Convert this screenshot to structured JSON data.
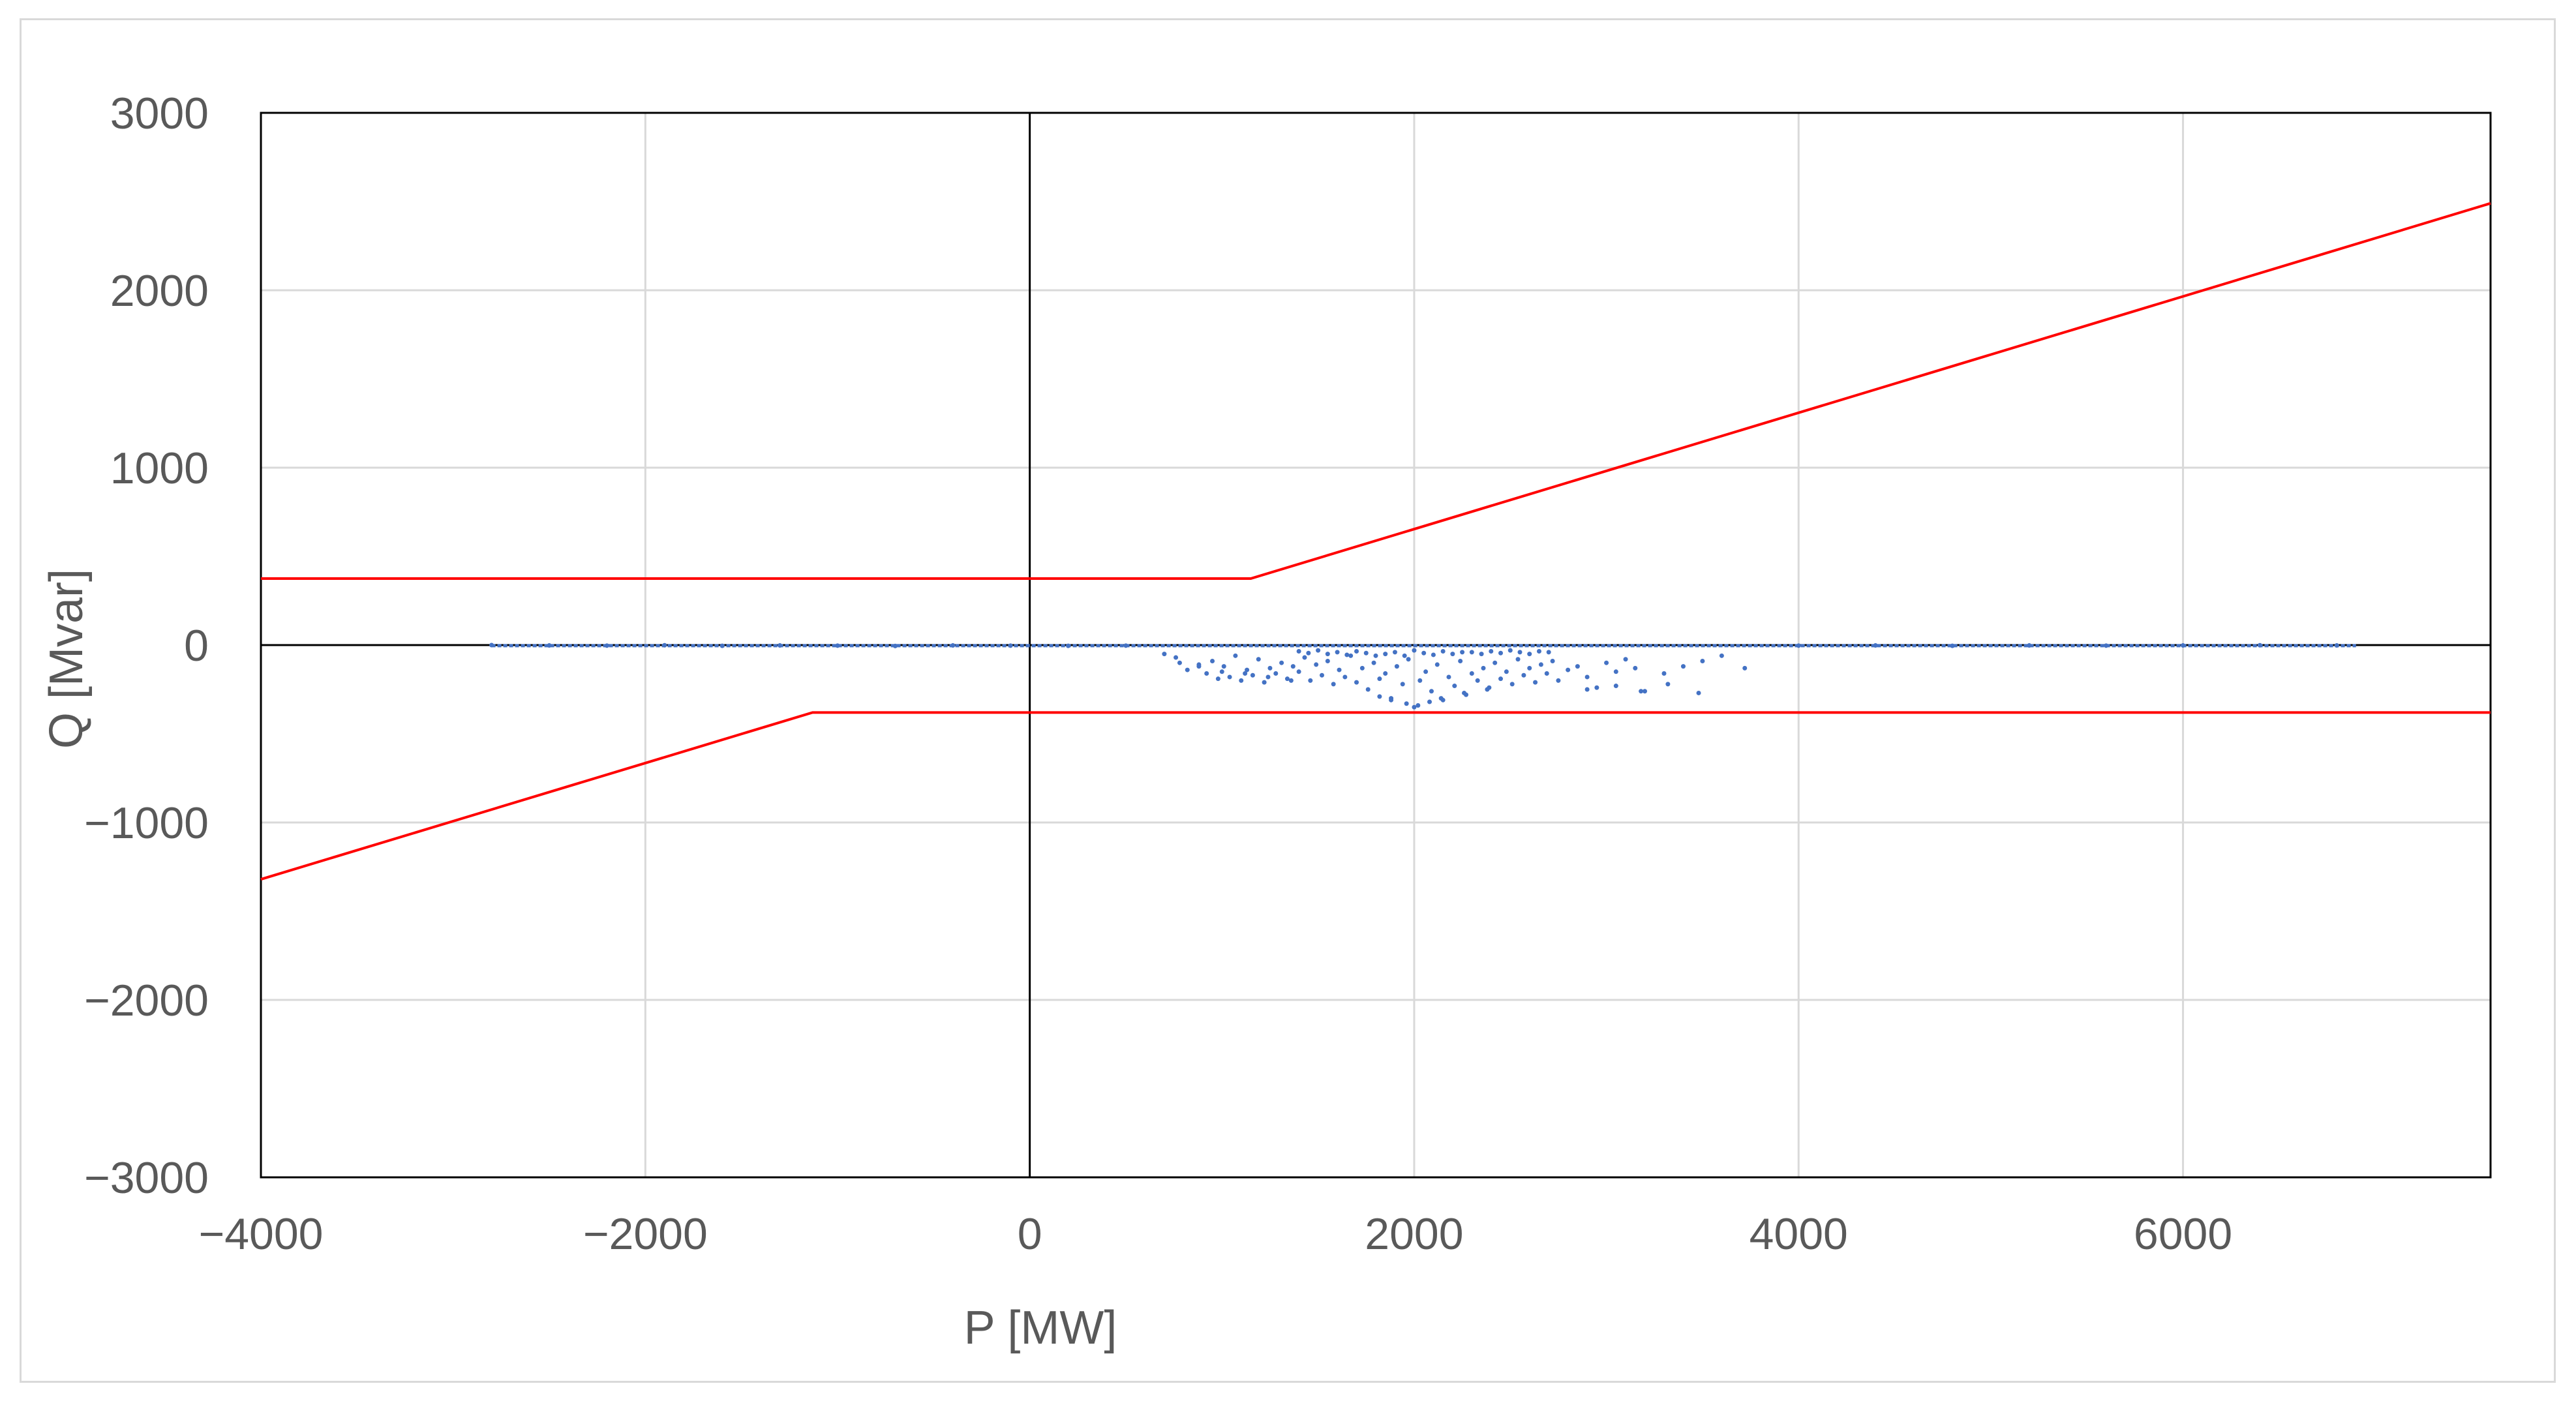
{
  "chart_data": {
    "type": "scatter",
    "title": "",
    "xlabel": "P [MW]",
    "ylabel": "Q [Mvar]",
    "xlim": [
      -4000,
      7600
    ],
    "ylim": [
      -3000,
      3000
    ],
    "x_ticks": [
      -4000,
      -2000,
      0,
      2000,
      4000,
      6000
    ],
    "y_ticks": [
      -3000,
      -2000,
      -1000,
      0,
      1000,
      2000,
      3000
    ],
    "x_tick_labels": [
      "−4000",
      "−2000",
      "0",
      "2000",
      "4000",
      "6000"
    ],
    "y_tick_labels": [
      "−3000",
      "−2000",
      "−1000",
      "0",
      "1000",
      "2000",
      "3000"
    ],
    "grid": true,
    "legend": "none",
    "colors": {
      "limit": "#ff0000",
      "points": "#4472c4",
      "grid": "#d9d9d9",
      "axis": "#000000",
      "text": "#595959"
    },
    "limit_lines": [
      {
        "name": "upper",
        "x": [
          -4000,
          1150,
          7600
        ],
        "y": [
          375,
          375,
          2490
        ]
      },
      {
        "name": "lower",
        "x": [
          -4000,
          -1130,
          7600
        ],
        "y": [
          -1320,
          -380,
          -380
        ]
      }
    ],
    "operating_points": {
      "x": [
        -2800,
        -2500,
        -2200,
        -1900,
        -1600,
        -1300,
        -1000,
        -700,
        -400,
        -100,
        200,
        500,
        700,
        760,
        820,
        880,
        920,
        950,
        980,
        1010,
        1040,
        1070,
        1100,
        1130,
        1160,
        1190,
        1220,
        1250,
        1280,
        1310,
        1340,
        1370,
        1400,
        1430,
        1460,
        1490,
        1520,
        1550,
        1580,
        1610,
        1640,
        1670,
        1700,
        1730,
        1760,
        1790,
        1820,
        1850,
        1880,
        1910,
        1940,
        1970,
        2000,
        2030,
        2060,
        2090,
        2120,
        2150,
        2180,
        2210,
        2240,
        2270,
        2300,
        2330,
        2360,
        2390,
        2420,
        2450,
        2480,
        2510,
        2540,
        2570,
        2600,
        2630,
        2660,
        2690,
        2720,
        2750,
        2800,
        2850,
        2900,
        2950,
        3000,
        3050,
        3100,
        3150,
        3200,
        3300,
        3400,
        3500,
        3600,
        3720,
        4000,
        4400,
        4800,
        5200,
        5600,
        6000,
        6400,
        6800,
        1850,
        1900,
        1950,
        2000,
        2050,
        2100,
        2150,
        2200,
        2250,
        1800,
        1750,
        1700,
        1650,
        1600,
        1550,
        1500,
        1450,
        1400,
        2300,
        2350,
        2400,
        2450,
        2500,
        2550,
        2600,
        2650,
        2700,
        1960,
        2020,
        2080,
        1880,
        1820,
        2140,
        2260,
        2380,
        1360,
        1240,
        1120,
        1000,
        880,
        780,
        2900,
        3050,
        3180,
        3320,
        3480
      ],
      "y": [
        0,
        -2,
        -3,
        -1,
        -4,
        -2,
        -3,
        -5,
        -2,
        -3,
        -4,
        -3,
        -50,
        -70,
        -140,
        -110,
        -160,
        -90,
        -190,
        -120,
        -180,
        -60,
        -200,
        -140,
        -170,
        -80,
        -210,
        -130,
        -160,
        -100,
        -190,
        -120,
        -150,
        -70,
        -200,
        -110,
        -170,
        -90,
        -220,
        -140,
        -180,
        -60,
        -210,
        -130,
        -250,
        -100,
        -190,
        -160,
        -300,
        -120,
        -220,
        -80,
        -350,
        -200,
        -150,
        -260,
        -110,
        -310,
        -180,
        -230,
        -90,
        -280,
        -160,
        -200,
        -130,
        -240,
        -100,
        -190,
        -150,
        -220,
        -80,
        -170,
        -130,
        -210,
        -110,
        -160,
        -90,
        -200,
        -140,
        -120,
        -180,
        -240,
        -100,
        -150,
        -80,
        -130,
        -260,
        -160,
        -120,
        -90,
        -60,
        -130,
        -3,
        -2,
        -4,
        -2,
        -3,
        -2,
        -1,
        -2,
        -50,
        -40,
        -60,
        -30,
        -45,
        -55,
        -35,
        -50,
        -40,
        -60,
        -45,
        -35,
        -55,
        -40,
        -50,
        -30,
        -45,
        -35,
        -40,
        -50,
        -35,
        -45,
        -30,
        -40,
        -50,
        -35,
        -40,
        -330,
        -340,
        -320,
        -310,
        -290,
        -300,
        -270,
        -250,
        -200,
        -180,
        -160,
        -150,
        -120,
        -100,
        -250,
        -230,
        -260,
        -220,
        -270
      ]
    }
  }
}
